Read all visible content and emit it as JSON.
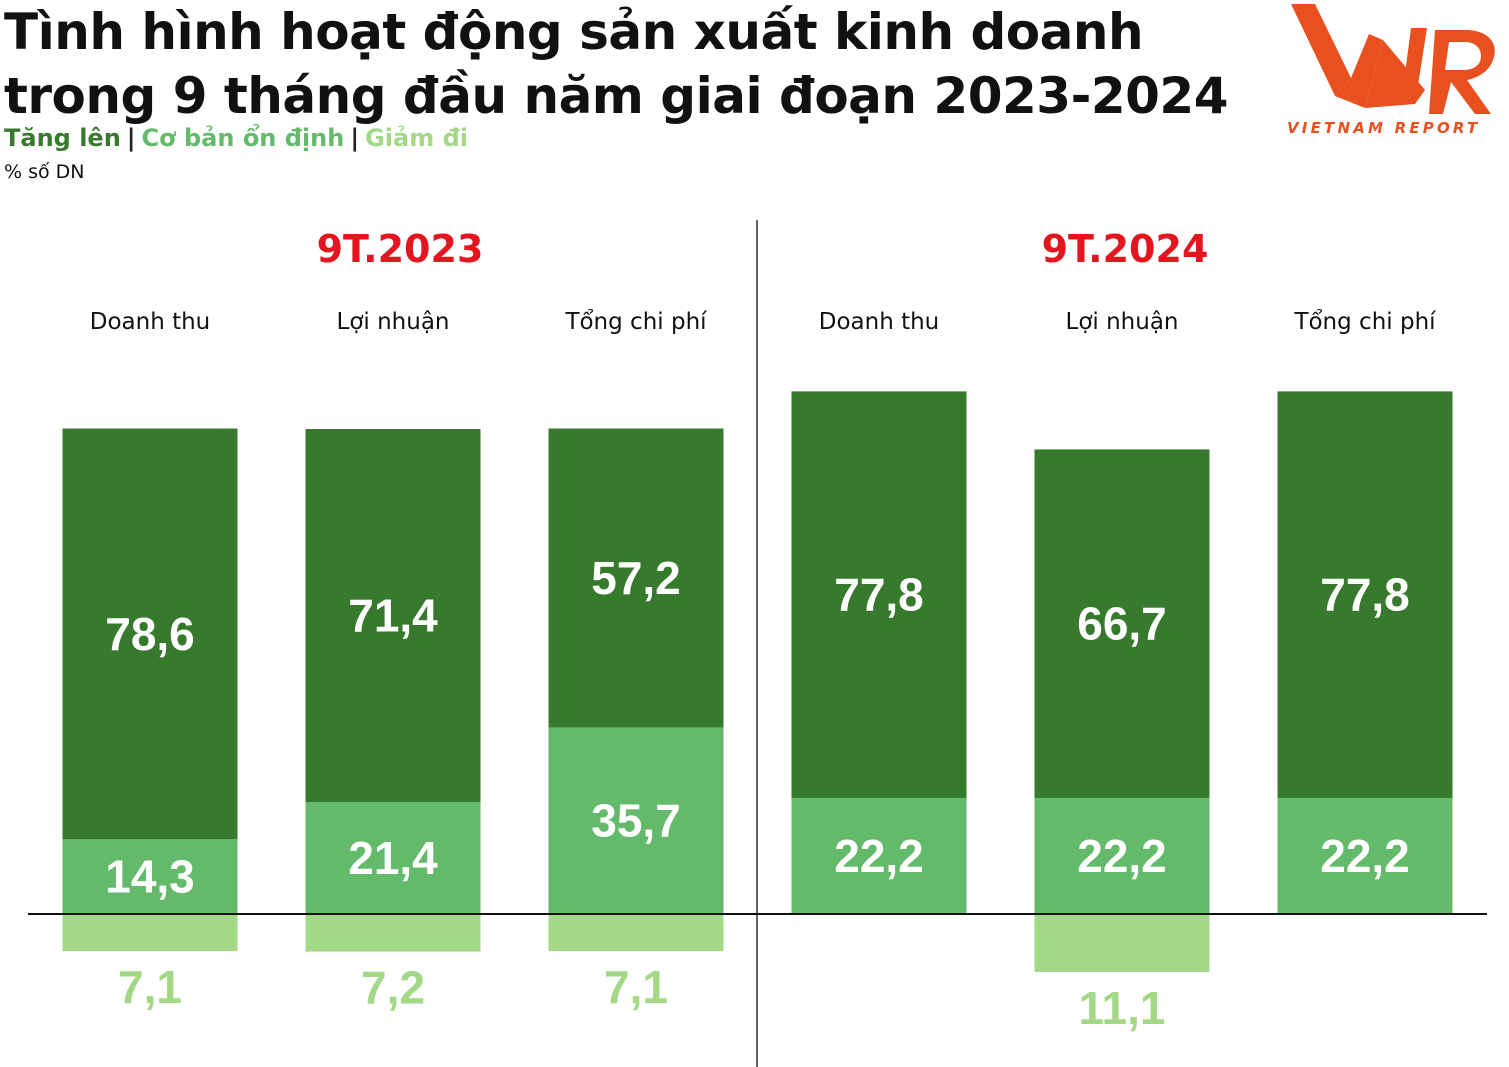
{
  "title": "Tình hình hoạt động sản xuất kinh doanh trong 9 tháng đầu năm giai đoạn 2023-2024",
  "unit_label": "% số DN",
  "logo": {
    "text": "VIETNAM REPORT",
    "color": "#e8501f"
  },
  "colors": {
    "up": "#387a2d",
    "stable": "#63ba6a",
    "down": "#a3d886",
    "period": "#e3151f"
  },
  "chart_data": {
    "type": "bar",
    "stacked": "diverging",
    "legend": [
      "Tăng lên",
      "Cơ bản ổn định",
      "Giảm đi"
    ],
    "ylabel": "% số DN",
    "periods": [
      {
        "name": "9T.2023",
        "categories": [
          "Doanh thu",
          "Lợi nhuận",
          "Tổng chi phí"
        ]
      },
      {
        "name": "9T.2024",
        "categories": [
          "Doanh thu",
          "Lợi nhuận",
          "Tổng chi phí"
        ]
      }
    ],
    "categories": [
      "Doanh thu",
      "Lợi nhuận",
      "Tổng chi phí",
      "Doanh thu",
      "Lợi nhuận",
      "Tổng chi phí"
    ],
    "series": [
      {
        "name": "Tăng lên",
        "values": [
          78.6,
          71.4,
          57.2,
          77.8,
          66.7,
          77.8
        ],
        "labels": [
          "78,6",
          "71,4",
          "57,2",
          "77,8",
          "66,7",
          "77,8"
        ]
      },
      {
        "name": "Cơ bản ổn định",
        "values": [
          14.3,
          21.4,
          35.7,
          22.2,
          22.2,
          22.2
        ],
        "labels": [
          "14,3",
          "21,4",
          "35,7",
          "22,2",
          "22,2",
          "22,2"
        ]
      },
      {
        "name": "Giảm đi",
        "values": [
          7.1,
          7.2,
          7.1,
          0,
          11.1,
          0
        ],
        "labels": [
          "7,1",
          "7,2",
          "7,1",
          "",
          "11,1",
          ""
        ]
      }
    ]
  }
}
